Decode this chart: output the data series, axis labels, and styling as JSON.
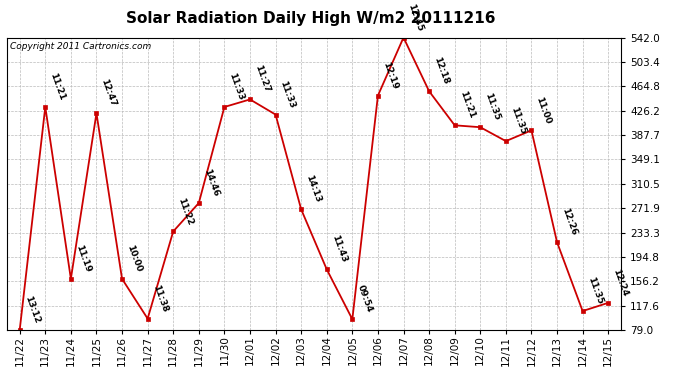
{
  "title": "Solar Radiation Daily High W/m2 20111216",
  "copyright": "Copyright 2011 Cartronics.com",
  "dates": [
    "11/22",
    "11/23",
    "11/24",
    "11/25",
    "11/26",
    "11/27",
    "11/28",
    "11/29",
    "11/30",
    "12/01",
    "12/02",
    "12/03",
    "12/04",
    "12/05",
    "12/06",
    "12/07",
    "12/08",
    "12/09",
    "12/10",
    "12/11",
    "12/12",
    "12/13",
    "12/14",
    "12/15"
  ],
  "values": [
    79,
    432,
    160,
    422,
    160,
    97,
    235,
    280,
    432,
    444,
    420,
    270,
    175,
    96,
    450,
    542,
    457,
    403,
    400,
    378,
    395,
    218,
    109,
    122
  ],
  "time_labels": [
    "13:12",
    "11:21",
    "11:19",
    "12:47",
    "10:00",
    "11:38",
    "11:22",
    "14:46",
    "11:33",
    "11:27",
    "11:33",
    "14:13",
    "11:43",
    "09:54",
    "12:19",
    "12:45",
    "12:18",
    "11:21",
    "11:35",
    "11:35",
    "11:00",
    "12:26",
    "11:35",
    "12:24"
  ],
  "ylim": [
    79.0,
    542.0
  ],
  "yticks": [
    79.0,
    117.6,
    156.2,
    194.8,
    233.3,
    271.9,
    310.5,
    349.1,
    387.7,
    426.2,
    464.8,
    503.4,
    542.0
  ],
  "line_color": "#cc0000",
  "marker_color": "#cc0000",
  "bg_color": "#ffffff",
  "plot_bg_color": "#ffffff",
  "grid_color": "#bbbbbb",
  "title_fontsize": 11,
  "label_fontsize": 6.5,
  "copyright_fontsize": 6.5,
  "tick_fontsize": 7.5
}
